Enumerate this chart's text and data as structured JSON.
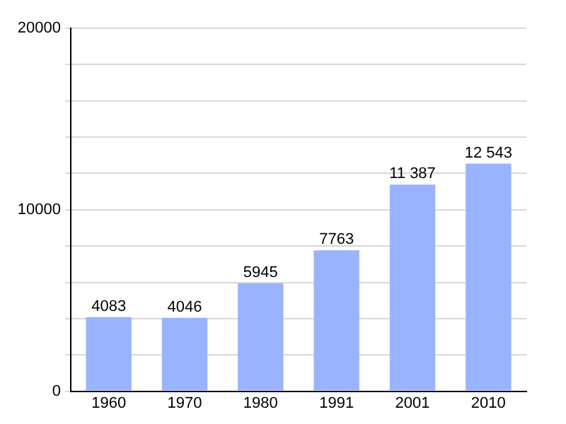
{
  "chart_data": {
    "type": "bar",
    "categories": [
      "1960",
      "1970",
      "1980",
      "1991",
      "2001",
      "2010"
    ],
    "values": [
      4083,
      4046,
      5945,
      7763,
      11387,
      12543
    ],
    "value_labels": [
      "4083",
      "4046",
      "5945",
      "7763",
      "11 387",
      "12 543"
    ],
    "color": "#99b3ff",
    "ylim": [
      0,
      20000
    ],
    "yticks": [
      0,
      {
        "value": 2000,
        "label": null
      },
      {
        "value": 4000,
        "label": null
      },
      {
        "value": 6000,
        "label": null
      },
      {
        "value": 8000,
        "label": null
      },
      10000,
      {
        "value": 12000,
        "label": null
      },
      {
        "value": 14000,
        "label": null
      },
      {
        "value": 16000,
        "label": null
      },
      {
        "value": 18000,
        "label": null
      },
      20000
    ],
    "grid": "y",
    "legend": false
  }
}
